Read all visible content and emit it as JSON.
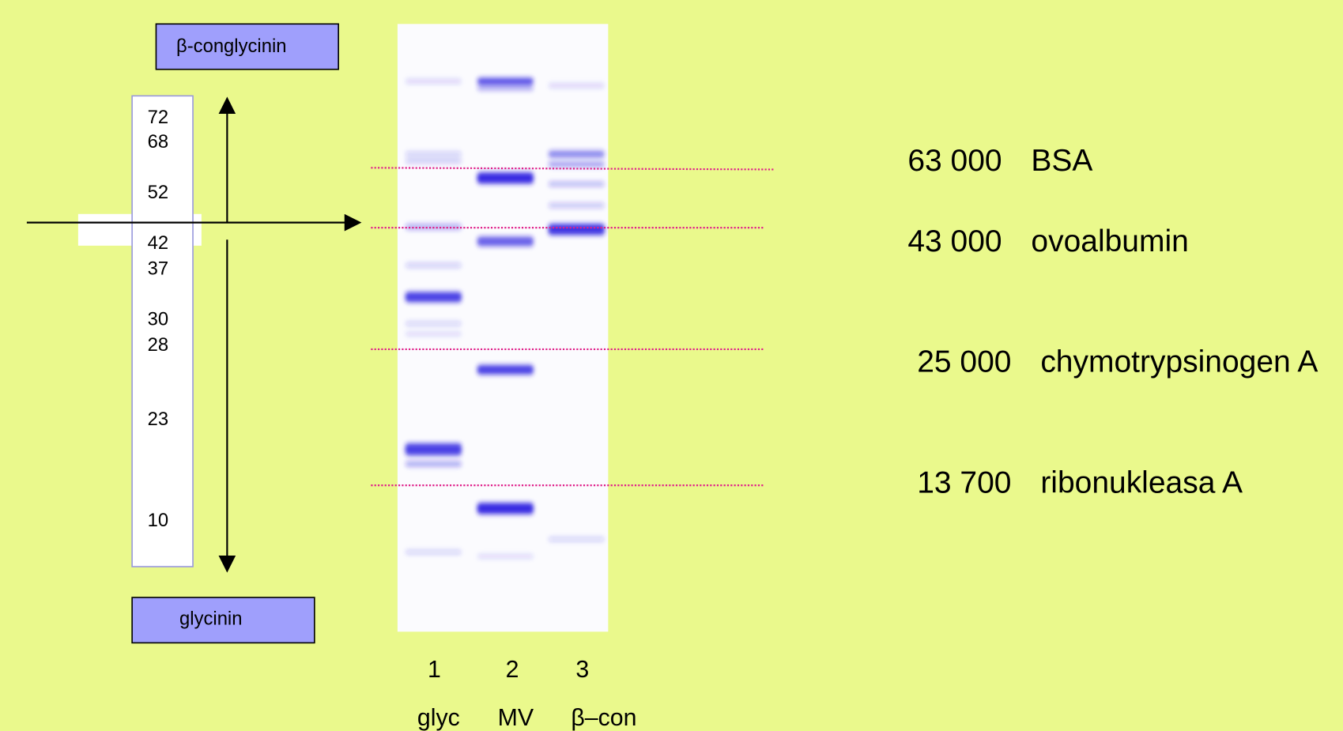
{
  "boxes": {
    "top": "β-conglycinin",
    "bottom": "glycinin"
  },
  "ladder": [
    "72",
    "68",
    "52",
    "42",
    "37",
    "30",
    "28",
    "23",
    "10"
  ],
  "lanes": [
    {
      "number": "1",
      "name": "glyc"
    },
    {
      "number": "2",
      "name": "MV"
    },
    {
      "number": "3",
      "name": "β–con"
    }
  ],
  "standards": [
    {
      "mass": "63 000",
      "name": "BSA"
    },
    {
      "mass": "43 000",
      "name": "ovoalbumin"
    },
    {
      "mass": "25 000",
      "name": "chymotrypsinogen A"
    },
    {
      "mass": "13 700",
      "name": "ribonukleasa A"
    }
  ]
}
